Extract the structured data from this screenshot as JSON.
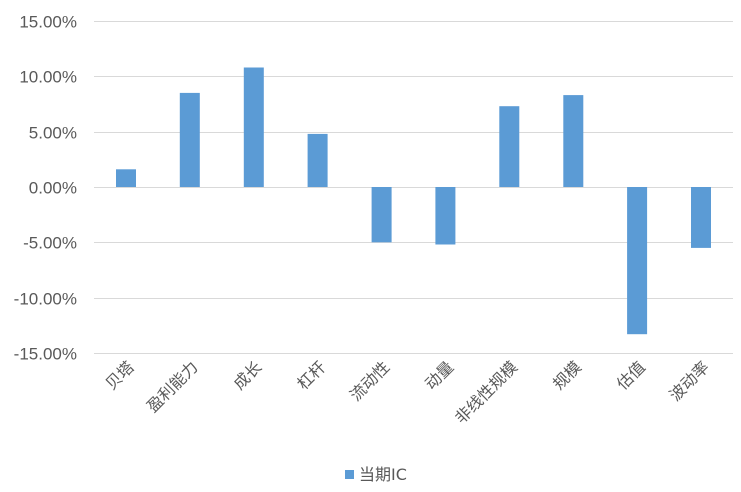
{
  "chart_data": {
    "type": "bar",
    "categories": [
      "贝塔",
      "盈利能力",
      "成长",
      "杠杆",
      "流动性",
      "动量",
      "非线性规模",
      "规模",
      "估值",
      "波动率"
    ],
    "series": [
      {
        "name": "当期IC",
        "values": [
          1.6,
          8.5,
          10.8,
          4.8,
          -5.0,
          -5.2,
          7.3,
          8.3,
          -13.3,
          -5.5
        ]
      }
    ],
    "ylim": [
      -15,
      15
    ],
    "yticks": [
      15,
      10,
      5,
      0,
      -5,
      -10,
      -15
    ],
    "ytick_labels": [
      "15.00%",
      "10.00%",
      "5.00%",
      "0.00%",
      "-5.00%",
      "-10.00%",
      "-15.00%"
    ],
    "grid": true,
    "legend_position": "bottom",
    "bar_color": "#5b9bd5",
    "grid_color": "#d9d9d9",
    "text_color": "#595959"
  }
}
